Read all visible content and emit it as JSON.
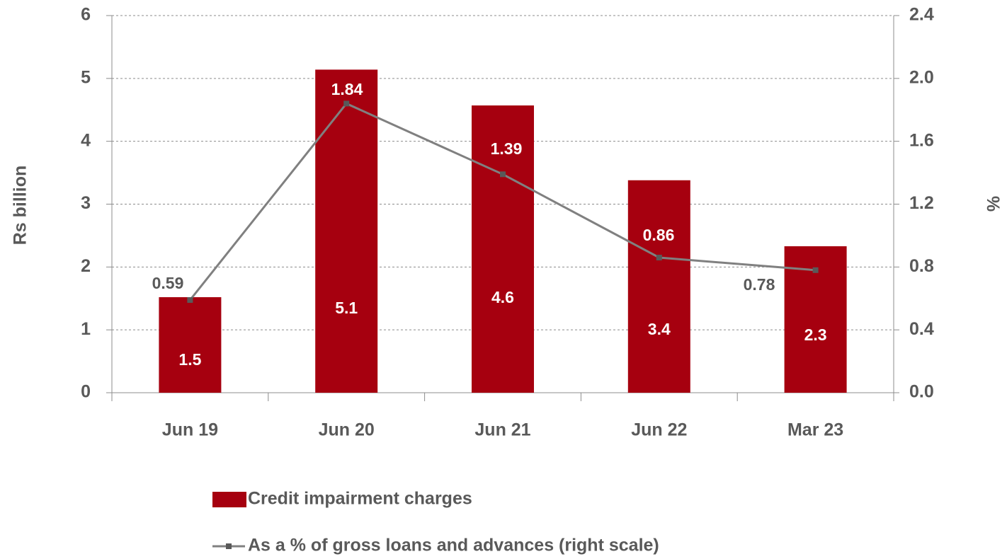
{
  "chart_data": {
    "type": "bar",
    "categories": [
      "Jun 19",
      "Jun 20",
      "Jun 21",
      "Jun 22",
      "Mar 23"
    ],
    "series": [
      {
        "name": "Credit impairment charges",
        "type": "bar",
        "color": "#a6000f",
        "values": [
          1.52,
          5.14,
          4.57,
          3.38,
          2.33
        ],
        "value_labels": [
          "1.5",
          "5.1",
          "4.6",
          "3.4",
          "2.3"
        ]
      },
      {
        "name": "As a % of gross loans and advances (right scale)",
        "type": "line",
        "axis": "y2",
        "color": "#808080",
        "values": [
          0.59,
          1.84,
          1.39,
          0.86,
          0.78
        ]
      }
    ],
    "ylabel": "Rs billion",
    "y2label": "%",
    "ylim": [
      0,
      6
    ],
    "yticks": [
      0,
      1,
      2,
      3,
      4,
      5,
      6
    ],
    "y2lim": [
      0,
      2.4
    ],
    "y2ticks": [
      {
        "value": 0,
        "label": "0.0"
      },
      0.4,
      0.8,
      1.2,
      1.6,
      {
        "value": 2,
        "label": "2.0"
      },
      2.4
    ],
    "grid": true,
    "legend": "bottom"
  }
}
